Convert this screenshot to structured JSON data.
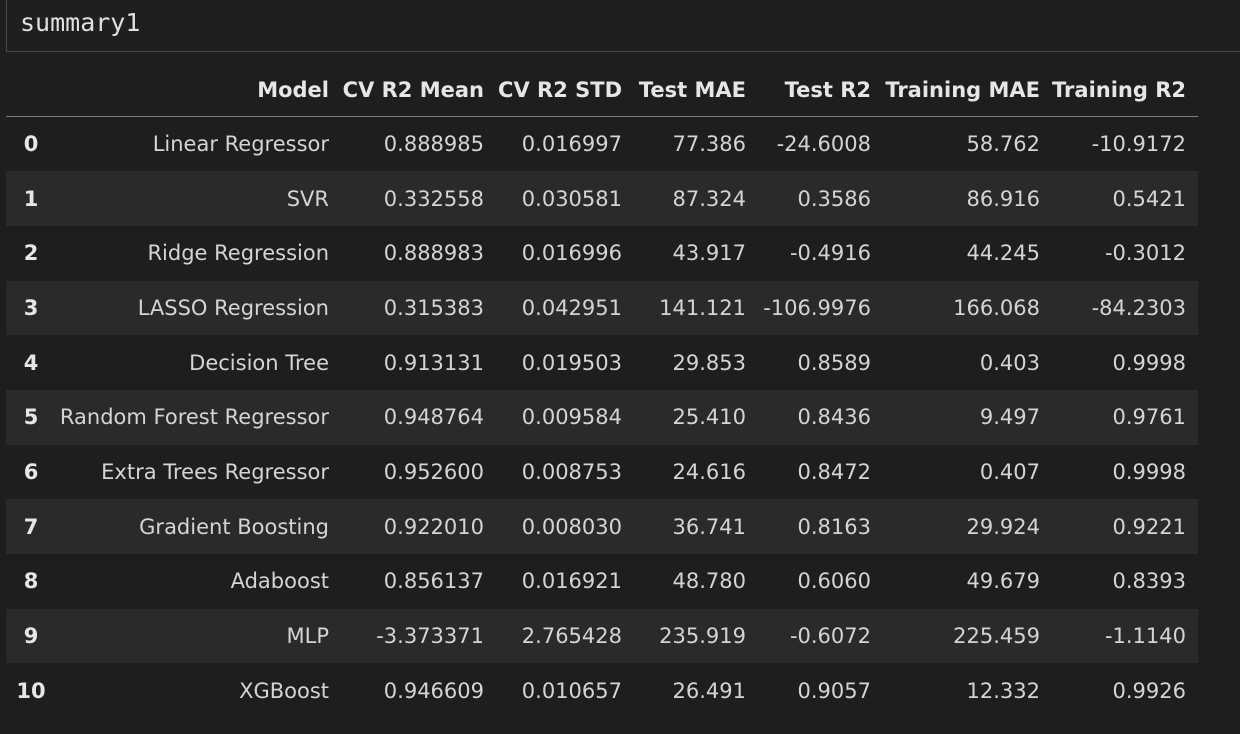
{
  "code_cell": {
    "source": "summary1"
  },
  "table": {
    "columns": [
      "",
      "Model",
      "CV R2 Mean",
      "CV R2 STD",
      "Test MAE",
      "Test R2",
      "Training MAE",
      "Training R2"
    ],
    "rows": [
      {
        "index": "0",
        "cells": [
          "Linear Regressor",
          "0.888985",
          "0.016997",
          "77.386",
          "-24.6008",
          "58.762",
          "-10.9172"
        ]
      },
      {
        "index": "1",
        "cells": [
          "SVR",
          "0.332558",
          "0.030581",
          "87.324",
          "0.3586",
          "86.916",
          "0.5421"
        ]
      },
      {
        "index": "2",
        "cells": [
          "Ridge Regression",
          "0.888983",
          "0.016996",
          "43.917",
          "-0.4916",
          "44.245",
          "-0.3012"
        ]
      },
      {
        "index": "3",
        "cells": [
          "LASSO Regression",
          "0.315383",
          "0.042951",
          "141.121",
          "-106.9976",
          "166.068",
          "-84.2303"
        ]
      },
      {
        "index": "4",
        "cells": [
          "Decision Tree",
          "0.913131",
          "0.019503",
          "29.853",
          "0.8589",
          "0.403",
          "0.9998"
        ]
      },
      {
        "index": "5",
        "cells": [
          "Random Forest Regressor",
          "0.948764",
          "0.009584",
          "25.410",
          "0.8436",
          "9.497",
          "0.9761"
        ]
      },
      {
        "index": "6",
        "cells": [
          "Extra Trees Regressor",
          "0.952600",
          "0.008753",
          "24.616",
          "0.8472",
          "0.407",
          "0.9998"
        ]
      },
      {
        "index": "7",
        "cells": [
          "Gradient Boosting",
          "0.922010",
          "0.008030",
          "36.741",
          "0.8163",
          "29.924",
          "0.9221"
        ]
      },
      {
        "index": "8",
        "cells": [
          "Adaboost",
          "0.856137",
          "0.016921",
          "48.780",
          "0.6060",
          "49.679",
          "0.8393"
        ]
      },
      {
        "index": "9",
        "cells": [
          "MLP",
          "-3.373371",
          "2.765428",
          "235.919",
          "-0.6072",
          "225.459",
          "-1.1140"
        ]
      },
      {
        "index": "10",
        "cells": [
          "XGBoost",
          "0.946609",
          "0.010657",
          "26.491",
          "0.9057",
          "12.332",
          "0.9926"
        ]
      }
    ]
  }
}
